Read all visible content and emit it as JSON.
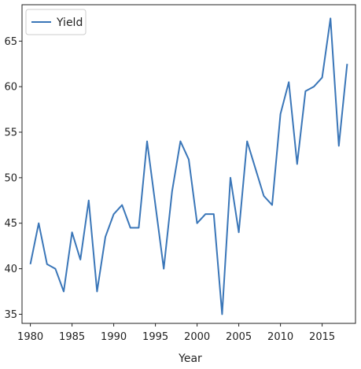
{
  "chart_data": {
    "type": "line",
    "title": "",
    "xlabel": "Year",
    "ylabel": "",
    "xlim": [
      1979,
      2019
    ],
    "ylim": [
      34,
      69
    ],
    "xticks": [
      1980,
      1985,
      1990,
      1995,
      2000,
      2005,
      2010,
      2015
    ],
    "yticks": [
      35,
      40,
      45,
      50,
      55,
      60,
      65
    ],
    "grid": false,
    "legend_position": "top-left",
    "series": [
      {
        "name": "Yield",
        "color": "#3a76b8",
        "x": [
          1980,
          1981,
          1982,
          1983,
          1984,
          1985,
          1986,
          1987,
          1988,
          1989,
          1990,
          1991,
          1992,
          1993,
          1994,
          1995,
          1996,
          1997,
          1998,
          1999,
          2000,
          2001,
          2002,
          2003,
          2004,
          2005,
          2006,
          2007,
          2008,
          2009,
          2010,
          2011,
          2012,
          2013,
          2014,
          2015,
          2016,
          2017,
          2018
        ],
        "values": [
          40.5,
          45.0,
          40.5,
          40.0,
          37.5,
          44.0,
          41.0,
          47.5,
          37.5,
          43.5,
          46.0,
          47.0,
          44.5,
          44.5,
          54.0,
          47.0,
          40.0,
          48.5,
          54.0,
          52.0,
          45.0,
          46.0,
          46.0,
          35.0,
          50.0,
          44.0,
          54.0,
          51.0,
          48.0,
          47.0,
          57.0,
          60.5,
          51.5,
          59.5,
          60.0,
          61.0,
          67.5,
          53.5,
          62.5
        ]
      }
    ]
  }
}
